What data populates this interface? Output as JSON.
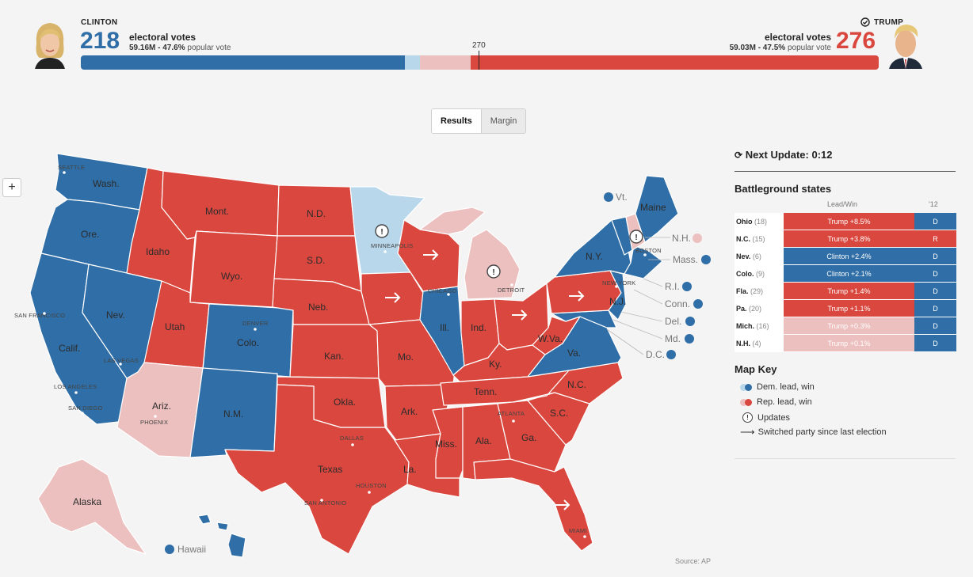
{
  "colors": {
    "dem_win": "#2f6ea6",
    "dem_lead": "#b9d7ea",
    "rep_win": "#d9473e",
    "rep_lead": "#ecc0bf",
    "undecided": "#e2e2e2"
  },
  "header": {
    "clinton": {
      "name": "CLINTON",
      "electoral_votes": "218",
      "ev_label": "electoral votes",
      "popular": "59.16M - 47.6%",
      "popular_suffix": "popular vote"
    },
    "trump": {
      "name": "TRUMP",
      "electoral_votes": "276",
      "ev_label": "electoral votes",
      "popular": "59.03M - 47.5%",
      "popular_suffix": "popular vote"
    },
    "threshold": "270",
    "bar_shares": {
      "dem_win": 0.406,
      "dem_lead": 0.019,
      "rep_lead": 0.064,
      "rep_win": 0.511
    }
  },
  "toggle": {
    "results": "Results",
    "margin": "Margin"
  },
  "zoom": {
    "label": "+"
  },
  "map": {
    "states": {
      "WA": "Wash.",
      "OR": "Ore.",
      "CA": "Calif.",
      "NV": "Nev.",
      "ID": "Idaho",
      "MT": "Mont.",
      "WY": "Wyo.",
      "UT": "Utah",
      "CO": "Colo.",
      "AZ": "Ariz.",
      "NM": "N.M.",
      "ND": "N.D.",
      "SD": "S.D.",
      "NE": "Neb.",
      "KS": "Kan.",
      "OK": "Okla.",
      "TX": "Texas",
      "MN": "",
      "IA": "",
      "MO": "Mo.",
      "AR": "Ark.",
      "LA": "La.",
      "WI": "",
      "IL": "Ill.",
      "MI": "",
      "IN": "Ind.",
      "OH": "",
      "KY": "Ky.",
      "TN": "Tenn.",
      "MS": "Miss.",
      "AL": "Ala.",
      "GA": "Ga.",
      "FL": "",
      "SC": "S.C.",
      "NC": "N.C.",
      "VA": "Va.",
      "WV": "W.Va.",
      "PA": "",
      "NY": "N.Y.",
      "ME": "Maine",
      "NJ": "N.J.",
      "AK": "Alaska",
      "HI": "Hawaii"
    },
    "small_states": {
      "VT": "Vt.",
      "NH": "N.H.",
      "MA": "Mass.",
      "RI": "R.I.",
      "CT": "Conn.",
      "DE": "Del.",
      "MD": "Md.",
      "DC": "D.C."
    },
    "cities": {
      "seattle": "SEATTLE",
      "sf": "SAN FRANCISCO",
      "la": "LOS ANGELES",
      "sd": "SAN DIEGO",
      "lv": "LAS VEGAS",
      "phoenix": "PHOENIX",
      "denver": "DENVER",
      "dallas": "DALLAS",
      "houston": "HOUSTON",
      "sa": "SAN ANTONIO",
      "minneapolis": "MINNEAPOLIS",
      "chicago": "CHICAGO",
      "detroit": "DETROIT",
      "atlanta": "ATLANTA",
      "miami": "MIAMI",
      "ny": "NEW YORK",
      "boston": "BOSTON"
    },
    "source": "Source: AP"
  },
  "sidebar": {
    "next_update": "Next Update: 0:12",
    "battleground_title": "Battleground states",
    "col_leadwin": "Lead/Win",
    "col_2012": "'12",
    "rows": [
      {
        "state": "Ohio",
        "ev": "(18)",
        "margin": "Trump +8.5%",
        "y2012": "D",
        "party": "rep_win",
        "p12": "dem_win"
      },
      {
        "state": "N.C.",
        "ev": "(15)",
        "margin": "Trump +3.8%",
        "y2012": "R",
        "party": "rep_win",
        "p12": "rep_win"
      },
      {
        "state": "Nev.",
        "ev": "(6)",
        "margin": "Clinton +2.4%",
        "y2012": "D",
        "party": "dem_win",
        "p12": "dem_win"
      },
      {
        "state": "Colo.",
        "ev": "(9)",
        "margin": "Clinton +2.1%",
        "y2012": "D",
        "party": "dem_win",
        "p12": "dem_win"
      },
      {
        "state": "Fla.",
        "ev": "(29)",
        "margin": "Trump +1.4%",
        "y2012": "D",
        "party": "rep_win",
        "p12": "dem_win"
      },
      {
        "state": "Pa.",
        "ev": "(20)",
        "margin": "Trump +1.1%",
        "y2012": "D",
        "party": "rep_win",
        "p12": "dem_win"
      },
      {
        "state": "Mich.",
        "ev": "(16)",
        "margin": "Trump +0.3%",
        "y2012": "D",
        "party": "rep_lead",
        "p12": "dem_win"
      },
      {
        "state": "N.H.",
        "ev": "(4)",
        "margin": "Trump +0.1%",
        "y2012": "D",
        "party": "rep_lead",
        "p12": "dem_win"
      }
    ],
    "key_title": "Map Key",
    "key": {
      "dem": "Dem. lead, win",
      "rep": "Rep. lead, win",
      "updates": "Updates",
      "switched": "Switched party since last election"
    }
  }
}
